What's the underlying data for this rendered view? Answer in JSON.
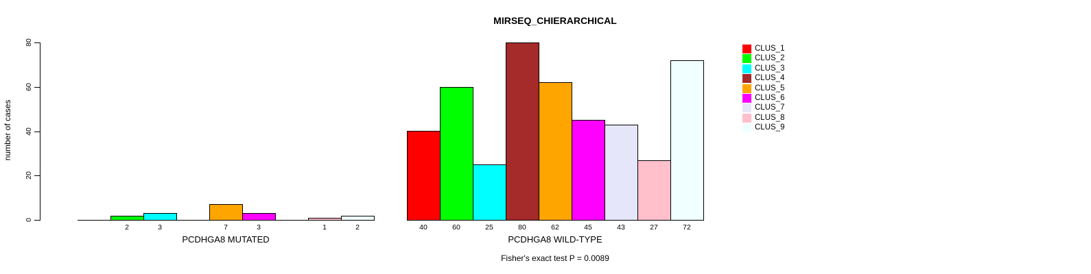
{
  "chart_data": {
    "type": "bar",
    "title": "MIRSEQ_CHIERARCHICAL",
    "ylabel": "number of cases",
    "ylim": [
      0,
      80
    ],
    "yticks": [
      0,
      20,
      40,
      60,
      80
    ],
    "series_names": [
      "CLUS_1",
      "CLUS_2",
      "CLUS_3",
      "CLUS_4",
      "CLUS_5",
      "CLUS_6",
      "CLUS_7",
      "CLUS_8",
      "CLUS_9"
    ],
    "colors": [
      "#FF0000",
      "#00FF00",
      "#00FFFF",
      "#A52A2A",
      "#FFA500",
      "#FF00FF",
      "#E6E6FA",
      "#FFC0CB",
      "#F0FFFF"
    ],
    "groups": [
      {
        "label": "PCDHGA8 MUTATED",
        "values": [
          0,
          2,
          3,
          0,
          7,
          3,
          0,
          1,
          2
        ]
      },
      {
        "label": "PCDHGA8 WILD-TYPE",
        "values": [
          40,
          60,
          25,
          80,
          62,
          45,
          43,
          27,
          72
        ]
      }
    ],
    "hide_zero_bar_labels": true,
    "grid": false,
    "legend_position": "right",
    "annotation": "Fisher's exact test P = 0.0089"
  }
}
